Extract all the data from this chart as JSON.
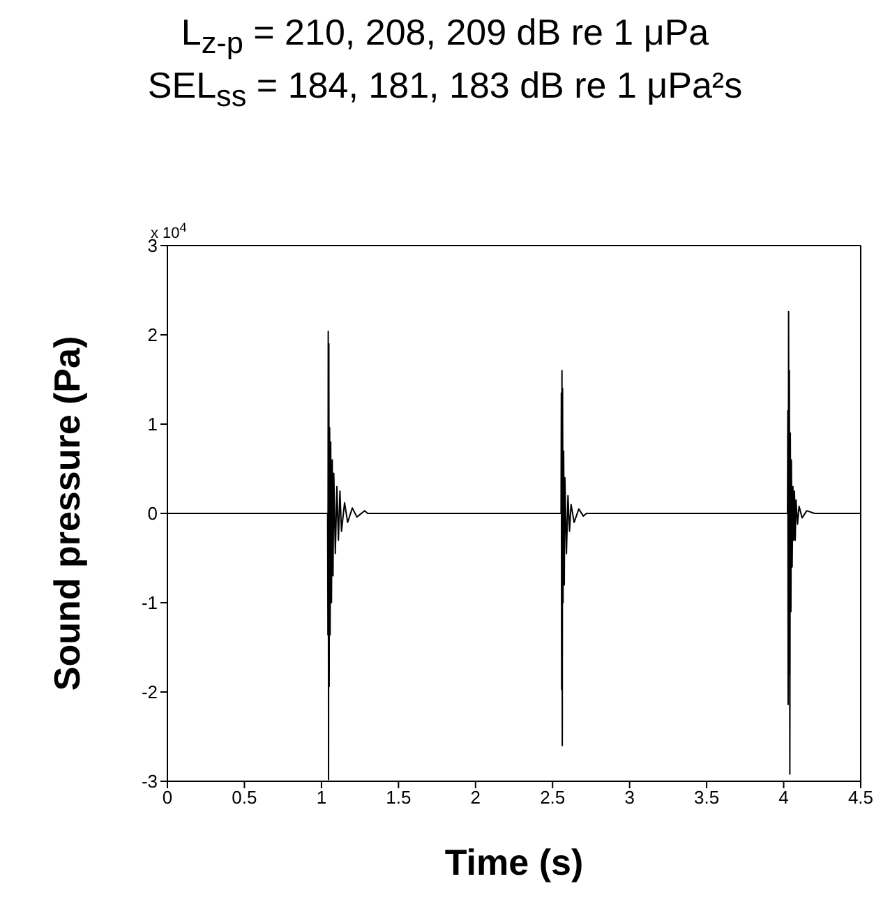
{
  "chart_data": {
    "type": "line",
    "title": "L$_{z-p}$ = 210, 208, 209 dB re 1 μPa",
    "subtitle": "SEL$_{ss}$ = 184, 181, 183 dB re 1 μPa²s",
    "xlabel": "Time (s)",
    "ylabel": "Sound pressure (Pa)",
    "annotations": [
      "x 10$^{4}$"
    ],
    "series": [
      {
        "color": "#000000",
        "x": [
          0,
          0.5,
          1.0,
          1.04,
          1.042,
          1.044,
          1.046,
          1.048,
          1.05,
          1.053,
          1.056,
          1.06,
          1.065,
          1.07,
          1.075,
          1.08,
          1.09,
          1.1,
          1.11,
          1.12,
          1.13,
          1.15,
          1.17,
          1.2,
          1.23,
          1.28,
          1.3,
          2.5,
          2.555,
          2.557,
          2.559,
          2.561,
          2.563,
          2.565,
          2.568,
          2.572,
          2.576,
          2.58,
          2.59,
          2.6,
          2.61,
          2.62,
          2.64,
          2.67,
          2.7,
          2.72,
          4.0,
          4.025,
          4.027,
          4.029,
          4.032,
          4.035,
          4.037,
          4.04,
          4.043,
          4.047,
          4.05,
          4.055,
          4.06,
          4.065,
          4.07,
          4.075,
          4.08,
          4.09,
          4.1,
          4.12,
          4.15,
          4.2,
          4.5
        ],
        "values": [
          0,
          0,
          0,
          0,
          -1.36,
          2.04,
          -2.98,
          1.9,
          -1.94,
          0.96,
          -1.36,
          0.8,
          -1.0,
          0.6,
          -0.7,
          0.45,
          -0.45,
          0.3,
          -0.3,
          0.25,
          -0.2,
          0.12,
          -0.1,
          0.06,
          -0.04,
          0.03,
          0,
          0,
          0,
          1.35,
          -1.97,
          1.6,
          -2.6,
          1.4,
          -1.0,
          0.7,
          -0.8,
          0.4,
          -0.45,
          0.2,
          -0.2,
          0.1,
          -0.1,
          0.05,
          -0.03,
          0,
          0,
          0,
          1.15,
          -2.14,
          2.26,
          -1.8,
          1.6,
          -2.92,
          0.9,
          -1.1,
          0.6,
          -0.6,
          0.3,
          -0.3,
          0.25,
          -0.3,
          0.15,
          -0.12,
          0.08,
          -0.05,
          0.03,
          0,
          0
        ]
      }
    ],
    "xlim": [
      0,
      4.5
    ],
    "xticks": [
      0,
      0.5,
      1,
      1.5,
      2,
      2.5,
      3,
      3.5,
      4,
      4.5
    ],
    "ylim": [
      -3,
      3
    ],
    "yticks": [
      -3,
      -2,
      -1,
      0,
      1,
      2,
      3
    ],
    "marker": "none",
    "line_style": "solid"
  }
}
